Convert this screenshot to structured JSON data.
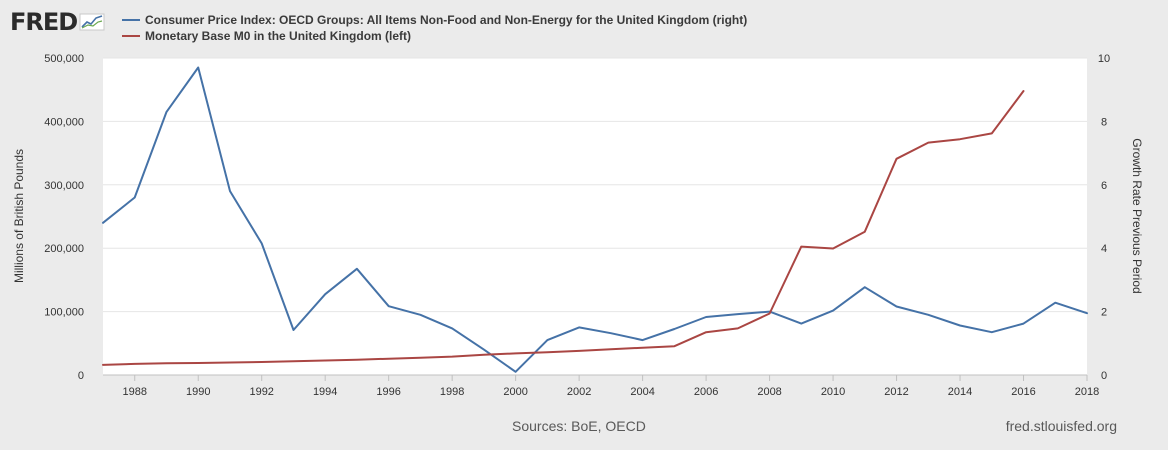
{
  "header": {
    "logo_text": "FRED",
    "logo_graph_icon": "fred-chart-icon"
  },
  "legend": [
    {
      "label": "Consumer Price Index: OECD Groups: All Items Non-Food and Non-Energy for the United Kingdom (right)",
      "color": "#4572a7"
    },
    {
      "label": "Monetary Base M0 in the United Kingdom (left)",
      "color": "#aa4643"
    }
  ],
  "footer": {
    "sources": "Sources: BoE, OECD",
    "url": "fred.stlouisfed.org"
  },
  "chart_data": {
    "type": "line",
    "xlim": [
      1987,
      2018
    ],
    "x_ticks": [
      "1988",
      "1990",
      "1992",
      "1994",
      "1996",
      "1998",
      "2000",
      "2002",
      "2004",
      "2006",
      "2008",
      "2010",
      "2012",
      "2014",
      "2016",
      "2018"
    ],
    "y_left": {
      "label": "Millions of British Pounds",
      "lim": [
        0,
        500000
      ],
      "ticks": [
        "0",
        "100,000",
        "200,000",
        "300,000",
        "400,000",
        "500,000"
      ]
    },
    "y_right": {
      "label": "Growth Rate Previous Period",
      "lim": [
        0,
        10
      ],
      "ticks": [
        "0",
        "2",
        "4",
        "6",
        "8",
        "10"
      ]
    },
    "grid": true,
    "series": [
      {
        "name": "Consumer Price Index: OECD Groups: All Items Non-Food and Non-Energy for the United Kingdom (right)",
        "axis": "right",
        "color": "#4572a7",
        "x": [
          1987,
          1988,
          1989,
          1990,
          1991,
          1992,
          1993,
          1994,
          1995,
          1996,
          1997,
          1998,
          1999,
          2000,
          2001,
          2002,
          2003,
          2004,
          2005,
          2006,
          2007,
          2008,
          2009,
          2010,
          2011,
          2012,
          2013,
          2014,
          2015,
          2016,
          2017,
          2018
        ],
        "y": [
          4.8,
          5.6,
          8.3,
          9.7,
          5.8,
          4.15,
          1.42,
          2.55,
          3.35,
          2.17,
          1.9,
          1.47,
          0.8,
          0.1,
          1.1,
          1.5,
          1.32,
          1.1,
          1.45,
          1.83,
          1.92,
          2.0,
          1.62,
          2.03,
          2.77,
          2.16,
          1.9,
          1.56,
          1.35,
          1.62,
          2.28,
          1.95
        ]
      },
      {
        "name": "Monetary Base M0 in the United Kingdom (left)",
        "axis": "left",
        "color": "#aa4643",
        "x": [
          1987,
          1988,
          1989,
          1990,
          1991,
          1992,
          1993,
          1994,
          1995,
          1996,
          1997,
          1998,
          1999,
          2000,
          2001,
          2002,
          2003,
          2004,
          2005,
          2006,
          2007,
          2008,
          2009,
          2010,
          2011,
          2012,
          2013,
          2014,
          2015,
          2016
        ],
        "y": [
          16000,
          17500,
          18500,
          19000,
          19700,
          20500,
          21700,
          22800,
          24200,
          25700,
          27300,
          29000,
          32000,
          34000,
          36000,
          38000,
          40500,
          43000,
          45500,
          67500,
          73500,
          97000,
          202500,
          199500,
          226000,
          341000,
          366500,
          372000,
          381000,
          448000
        ]
      }
    ]
  }
}
